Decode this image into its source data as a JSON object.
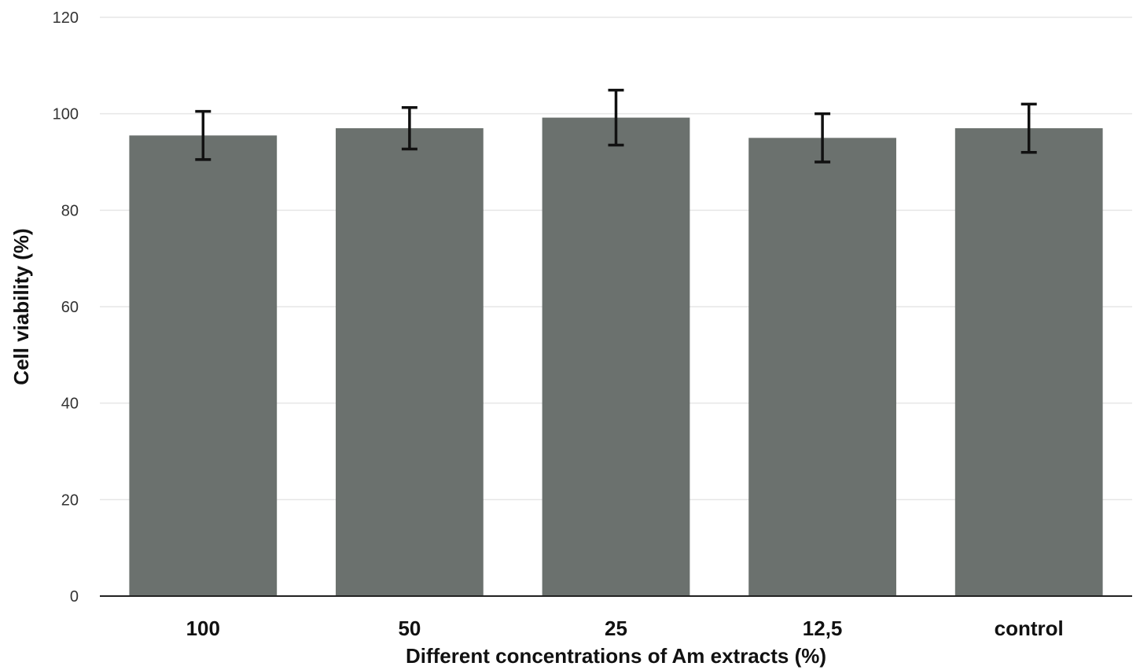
{
  "chart_data": {
    "type": "bar",
    "title": "",
    "xlabel": "Different concentrations of Am extracts (%)",
    "ylabel": "Cell viability (%)",
    "categories": [
      "100",
      "50",
      "25",
      "12,5",
      "control"
    ],
    "values": [
      95.5,
      97,
      99.2,
      95,
      97
    ],
    "errors": [
      5,
      4.3,
      5.7,
      5,
      5
    ],
    "ylim": [
      0,
      120
    ],
    "yticks": [
      0,
      20,
      40,
      60,
      80,
      100,
      120
    ],
    "grid": true,
    "legend": "none",
    "colors": {
      "bar": "#6b716e",
      "error_bar": "#111111",
      "grid": "#e6e6e6"
    }
  }
}
